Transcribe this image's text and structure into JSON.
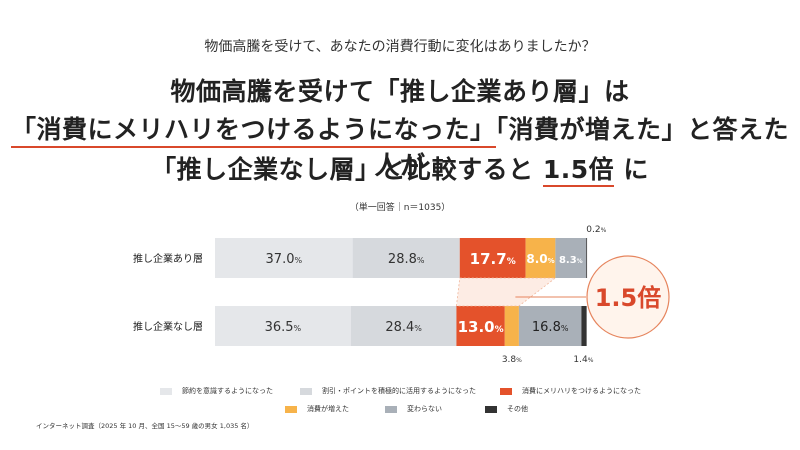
{
  "question": "物価高騰を受けて、あなたの消費行動に変化はありましたか？",
  "headline": {
    "line1": "物価高騰を受けて「推し企業あり層」は",
    "line2_part1": "「消費にメリハリをつけるようになった」",
    "line2_part2": "「消費が増えた」と答えた人が",
    "line3_part1": "「推し企業なし層」と比較すると",
    "line3_highlight": "1.5倍",
    "line3_part2": "に"
  },
  "note": "（単一回答｜n＝1035）",
  "callout": "1.5倍",
  "footnote": "インターネット調査（2025 年 10 月、全国 15〜59 歳の男女 1,035 名）",
  "colors": {
    "s1": "#e5e7ea",
    "s2": "#d6d9dd",
    "s3": "#e4522b",
    "s4": "#f7b34a",
    "s5": "#a9b0b8",
    "s6": "#333333",
    "callout_bg": "#fff4ec",
    "callout_border": "#e6855e",
    "callout_text": "#d9482b"
  },
  "chart_data": {
    "type": "bar",
    "orientation": "horizontal",
    "stacked": true,
    "categories": [
      "推し企業あり層",
      "推し企業なし層"
    ],
    "series": [
      {
        "name": "節約を意識するようになった",
        "values": [
          37.0,
          36.5
        ]
      },
      {
        "name": "割引・ポイントを積極的に活用するようになった",
        "values": [
          28.8,
          28.4
        ]
      },
      {
        "name": "消費にメリハリをつけるようになった",
        "values": [
          17.7,
          13.0
        ]
      },
      {
        "name": "消費が増えた",
        "values": [
          8.0,
          3.8
        ]
      },
      {
        "name": "変わらない",
        "values": [
          8.3,
          16.8
        ]
      },
      {
        "name": "その他",
        "values": [
          0.2,
          1.4
        ]
      }
    ],
    "labels": [
      [
        "37.0%",
        "28.8%",
        "17.7%",
        "8.0%",
        "8.3%",
        "0.2%"
      ],
      [
        "36.5%",
        "28.4%",
        "13.0%",
        "3.8%",
        "16.8%",
        "1.4%"
      ]
    ],
    "xlim": [
      0,
      100
    ],
    "legend_position": "bottom"
  }
}
